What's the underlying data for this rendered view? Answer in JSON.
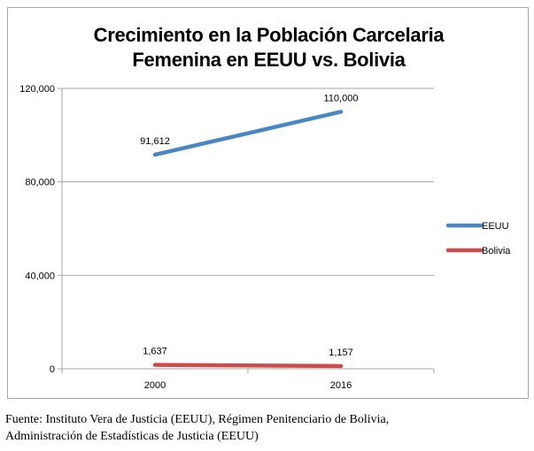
{
  "chart_data": {
    "type": "line",
    "title_lines": [
      "Crecimiento en la Población Carcelaria",
      "Femenina en EEUU vs. Bolivia"
    ],
    "categories": [
      "2000",
      "2016"
    ],
    "series": [
      {
        "name": "EEUU",
        "values": [
          91612,
          110000
        ],
        "labels": [
          "91,612",
          "110,000"
        ],
        "color": "#4a86c5"
      },
      {
        "name": "Bolivia",
        "values": [
          1637,
          1157
        ],
        "labels": [
          "1,637",
          "1,157"
        ],
        "color": "#cc4b4c"
      }
    ],
    "ylim": [
      0,
      120000
    ],
    "yticks": [
      0,
      40000,
      80000,
      120000
    ],
    "ytick_labels": [
      "0",
      "40,000",
      "80,000",
      "120,000"
    ],
    "grid": true,
    "legend_position": "right",
    "gridline_color": "#a6a6a6"
  },
  "source_note": {
    "line1": "Fuente: Instituto Vera de Justicia (EEUU), Régimen Penitenciario de Bolivia,",
    "line2": "Administración de Estadísticas de Justicia (EEUU)"
  }
}
